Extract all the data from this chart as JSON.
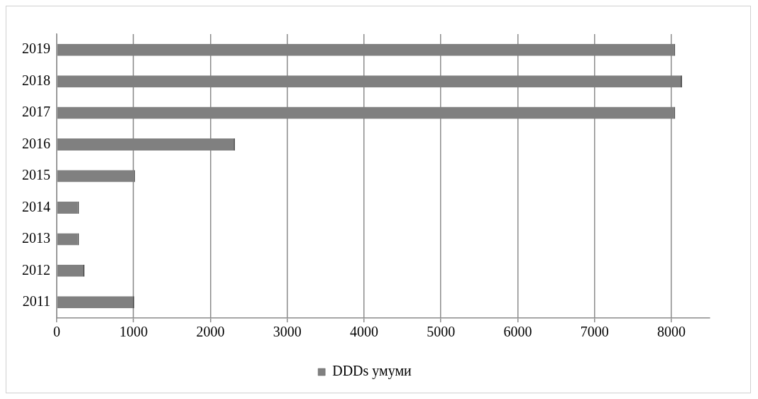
{
  "chart_data": {
    "type": "bar",
    "orientation": "horizontal",
    "categories": [
      "2019",
      "2018",
      "2017",
      "2016",
      "2015",
      "2014",
      "2013",
      "2012",
      "2011"
    ],
    "series": [
      {
        "name": "DDDs умуми",
        "color": "#808080",
        "values": [
          8050,
          8140,
          8050,
          2320,
          1020,
          290,
          290,
          360,
          1010
        ]
      }
    ],
    "xlim": [
      0,
      8500
    ],
    "xticks": [
      0,
      1000,
      2000,
      3000,
      4000,
      5000,
      6000,
      7000,
      8000
    ],
    "grid": "x",
    "legend": "bottom"
  }
}
